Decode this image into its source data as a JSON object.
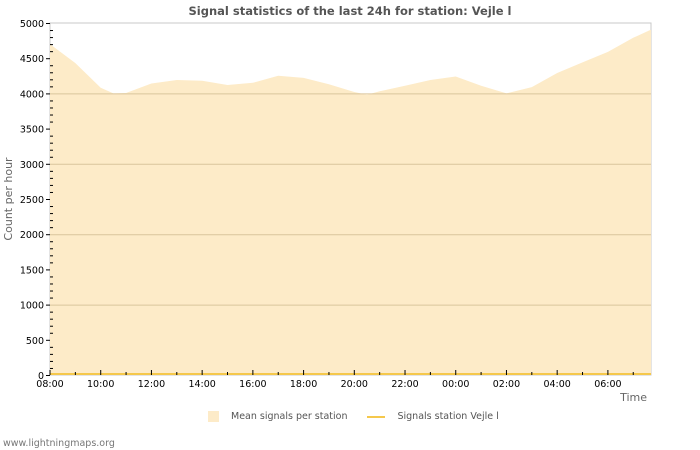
{
  "title": "Signal statistics of the last 24h for station: Vejle l",
  "footer": "www.lightningmaps.org",
  "legend": [
    {
      "label": "Mean signals per station",
      "type": "area",
      "color": "#fdebc8"
    },
    {
      "label": "Signals station Vejle l",
      "type": "line",
      "color": "#f5c84c"
    }
  ],
  "colors": {
    "area_fill": "#fdebc8",
    "line": "#f5c84c",
    "grid": "#c8c8c8",
    "grid_on_area": "#d9c59c",
    "frame": "#c8c8c8"
  },
  "chart_data": {
    "type": "area",
    "title": "Signal statistics of the last 24h for station: Vejle l",
    "xlabel": "Time",
    "ylabel": "Count per hour",
    "ylim": [
      0,
      5000
    ],
    "yticks": [
      0,
      500,
      1000,
      1500,
      2000,
      2500,
      3000,
      3500,
      4000,
      4500,
      5000
    ],
    "xticks": [
      "08:00",
      "10:00",
      "12:00",
      "14:00",
      "16:00",
      "18:00",
      "20:00",
      "22:00",
      "00:00",
      "02:00",
      "04:00",
      "06:00"
    ],
    "grid": true,
    "legend_position": "bottom",
    "x": [
      "08:00",
      "09:00",
      "10:00",
      "10:30",
      "11:00",
      "12:00",
      "13:00",
      "14:00",
      "15:00",
      "16:00",
      "17:00",
      "18:00",
      "19:00",
      "20:00",
      "20:30",
      "21:00",
      "22:00",
      "23:00",
      "00:00",
      "01:00",
      "02:00",
      "03:00",
      "04:00",
      "05:00",
      "06:00",
      "07:00",
      "07:40"
    ],
    "series": [
      {
        "name": "Mean signals per station",
        "type": "area",
        "values": [
          4700,
          4430,
          4080,
          4000,
          4005,
          4140,
          4190,
          4180,
          4120,
          4150,
          4250,
          4220,
          4130,
          4020,
          3980,
          4030,
          4110,
          4190,
          4240,
          4110,
          4000,
          4090,
          4290,
          4440,
          4590,
          4790,
          4900
        ]
      },
      {
        "name": "Signals station Vejle l",
        "type": "line",
        "values": [
          0,
          0,
          0,
          0,
          0,
          0,
          0,
          0,
          0,
          0,
          0,
          0,
          0,
          0,
          0,
          0,
          0,
          0,
          0,
          0,
          0,
          0,
          0,
          0,
          0,
          0,
          0
        ]
      }
    ]
  }
}
